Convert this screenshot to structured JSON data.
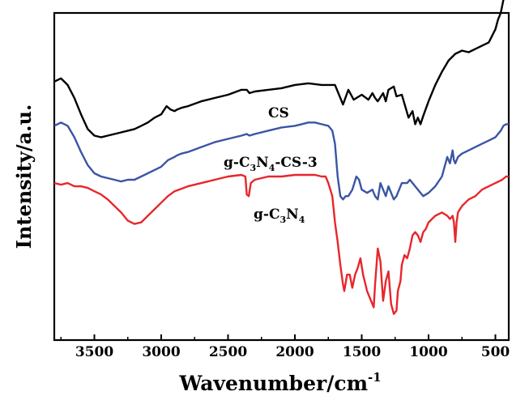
{
  "chart_data": {
    "type": "line",
    "xlabel": "Wavenumber/cm",
    "xlabel_sup": "-1",
    "ylabel": "Intensity/a.u.",
    "xlim": [
      3800,
      400
    ],
    "x_reversed": true,
    "x_ticks": [
      3500,
      3000,
      2500,
      2000,
      1500,
      1000,
      500
    ],
    "y_ticks_shown": false,
    "grid": false,
    "series": [
      {
        "name": "CS",
        "color": "#000000",
        "x": [
          3800,
          3750,
          3700,
          3650,
          3600,
          3550,
          3500,
          3450,
          3400,
          3350,
          3300,
          3250,
          3200,
          3150,
          3100,
          3050,
          3000,
          2960,
          2930,
          2900,
          2880,
          2850,
          2800,
          2700,
          2600,
          2500,
          2400,
          2360,
          2340,
          2300,
          2200,
          2100,
          2000,
          1900,
          1800,
          1750,
          1700,
          1660,
          1640,
          1600,
          1560,
          1500,
          1450,
          1420,
          1400,
          1380,
          1340,
          1320,
          1300,
          1260,
          1240,
          1200,
          1150,
          1120,
          1100,
          1080,
          1060,
          1040,
          1000,
          950,
          900,
          850,
          800,
          750,
          700,
          650,
          600,
          550,
          500,
          480,
          460,
          440,
          420,
          400
        ],
        "y": [
          0.79,
          0.8,
          0.78,
          0.74,
          0.69,
          0.645,
          0.625,
          0.62,
          0.625,
          0.63,
          0.635,
          0.64,
          0.645,
          0.655,
          0.665,
          0.68,
          0.69,
          0.715,
          0.705,
          0.7,
          0.705,
          0.71,
          0.715,
          0.73,
          0.74,
          0.75,
          0.765,
          0.765,
          0.755,
          0.76,
          0.765,
          0.77,
          0.78,
          0.785,
          0.78,
          0.78,
          0.78,
          0.74,
          0.72,
          0.765,
          0.735,
          0.75,
          0.735,
          0.755,
          0.74,
          0.73,
          0.755,
          0.73,
          0.765,
          0.775,
          0.745,
          0.75,
          0.68,
          0.7,
          0.66,
          0.68,
          0.66,
          0.685,
          0.73,
          0.78,
          0.82,
          0.855,
          0.875,
          0.885,
          0.88,
          0.89,
          0.9,
          0.91,
          0.95,
          0.98,
          1.0,
          1.04,
          1.07,
          1.06
        ]
      },
      {
        "name": "g-C3N4-CS-3",
        "color": "#3a55a4",
        "x": [
          3800,
          3750,
          3700,
          3650,
          3600,
          3550,
          3500,
          3450,
          3400,
          3350,
          3300,
          3250,
          3200,
          3150,
          3100,
          3050,
          3000,
          2950,
          2900,
          2880,
          2850,
          2800,
          2700,
          2600,
          2500,
          2400,
          2360,
          2340,
          2300,
          2200,
          2100,
          2000,
          1950,
          1900,
          1850,
          1800,
          1750,
          1720,
          1700,
          1680,
          1660,
          1640,
          1620,
          1600,
          1570,
          1540,
          1520,
          1500,
          1460,
          1420,
          1400,
          1380,
          1360,
          1340,
          1320,
          1300,
          1280,
          1260,
          1240,
          1200,
          1160,
          1140,
          1100,
          1060,
          1040,
          1000,
          950,
          900,
          880,
          860,
          840,
          820,
          810,
          800,
          780,
          750,
          700,
          650,
          600,
          550,
          500,
          460,
          440,
          420,
          400
        ],
        "y": [
          0.655,
          0.665,
          0.655,
          0.62,
          0.575,
          0.535,
          0.51,
          0.5,
          0.495,
          0.49,
          0.485,
          0.49,
          0.49,
          0.5,
          0.51,
          0.52,
          0.53,
          0.55,
          0.56,
          0.565,
          0.57,
          0.575,
          0.59,
          0.605,
          0.615,
          0.625,
          0.63,
          0.625,
          0.63,
          0.64,
          0.65,
          0.655,
          0.66,
          0.665,
          0.665,
          0.66,
          0.655,
          0.64,
          0.6,
          0.5,
          0.44,
          0.43,
          0.44,
          0.44,
          0.46,
          0.5,
          0.49,
          0.46,
          0.45,
          0.46,
          0.44,
          0.43,
          0.48,
          0.46,
          0.44,
          0.47,
          0.45,
          0.43,
          0.44,
          0.48,
          0.48,
          0.49,
          0.47,
          0.45,
          0.44,
          0.45,
          0.47,
          0.5,
          0.53,
          0.56,
          0.54,
          0.58,
          0.55,
          0.54,
          0.56,
          0.57,
          0.58,
          0.59,
          0.6,
          0.61,
          0.62,
          0.64,
          0.655,
          0.66,
          0.66
        ]
      },
      {
        "name": "g-C3N4",
        "color": "#e8262b",
        "x": [
          3800,
          3750,
          3700,
          3650,
          3600,
          3550,
          3500,
          3450,
          3400,
          3350,
          3300,
          3250,
          3200,
          3150,
          3100,
          3050,
          3000,
          2950,
          2900,
          2800,
          2700,
          2600,
          2500,
          2400,
          2370,
          2360,
          2345,
          2330,
          2300,
          2200,
          2100,
          2000,
          1900,
          1850,
          1800,
          1770,
          1750,
          1720,
          1700,
          1680,
          1660,
          1640,
          1630,
          1610,
          1590,
          1570,
          1550,
          1530,
          1510,
          1490,
          1460,
          1430,
          1410,
          1400,
          1380,
          1360,
          1340,
          1320,
          1300,
          1280,
          1260,
          1240,
          1230,
          1210,
          1200,
          1180,
          1160,
          1140,
          1120,
          1100,
          1080,
          1060,
          1040,
          1020,
          1000,
          950,
          900,
          860,
          840,
          820,
          810,
          800,
          790,
          780,
          750,
          700,
          650,
          600,
          550,
          500,
          450,
          420,
          400
        ],
        "y": [
          0.48,
          0.475,
          0.48,
          0.47,
          0.47,
          0.465,
          0.455,
          0.445,
          0.43,
          0.41,
          0.39,
          0.365,
          0.355,
          0.36,
          0.38,
          0.4,
          0.42,
          0.44,
          0.455,
          0.47,
          0.48,
          0.49,
          0.5,
          0.505,
          0.5,
          0.445,
          0.44,
          0.48,
          0.49,
          0.5,
          0.5,
          0.505,
          0.505,
          0.505,
          0.5,
          0.5,
          0.48,
          0.44,
          0.36,
          0.3,
          0.23,
          0.17,
          0.15,
          0.2,
          0.2,
          0.16,
          0.2,
          0.22,
          0.25,
          0.2,
          0.15,
          0.12,
          0.1,
          0.17,
          0.28,
          0.24,
          0.12,
          0.18,
          0.21,
          0.11,
          0.08,
          0.09,
          0.15,
          0.18,
          0.23,
          0.26,
          0.25,
          0.28,
          0.32,
          0.33,
          0.32,
          0.3,
          0.33,
          0.34,
          0.36,
          0.38,
          0.39,
          0.38,
          0.37,
          0.38,
          0.36,
          0.3,
          0.36,
          0.39,
          0.41,
          0.43,
          0.44,
          0.46,
          0.47,
          0.48,
          0.49,
          0.5,
          0.5
        ]
      }
    ],
    "annotations": [
      {
        "text": "CS",
        "series": 0
      },
      {
        "text": "g-C3N4-CS-3",
        "series": 1
      },
      {
        "text": "g-C3N4",
        "series": 2
      }
    ]
  }
}
